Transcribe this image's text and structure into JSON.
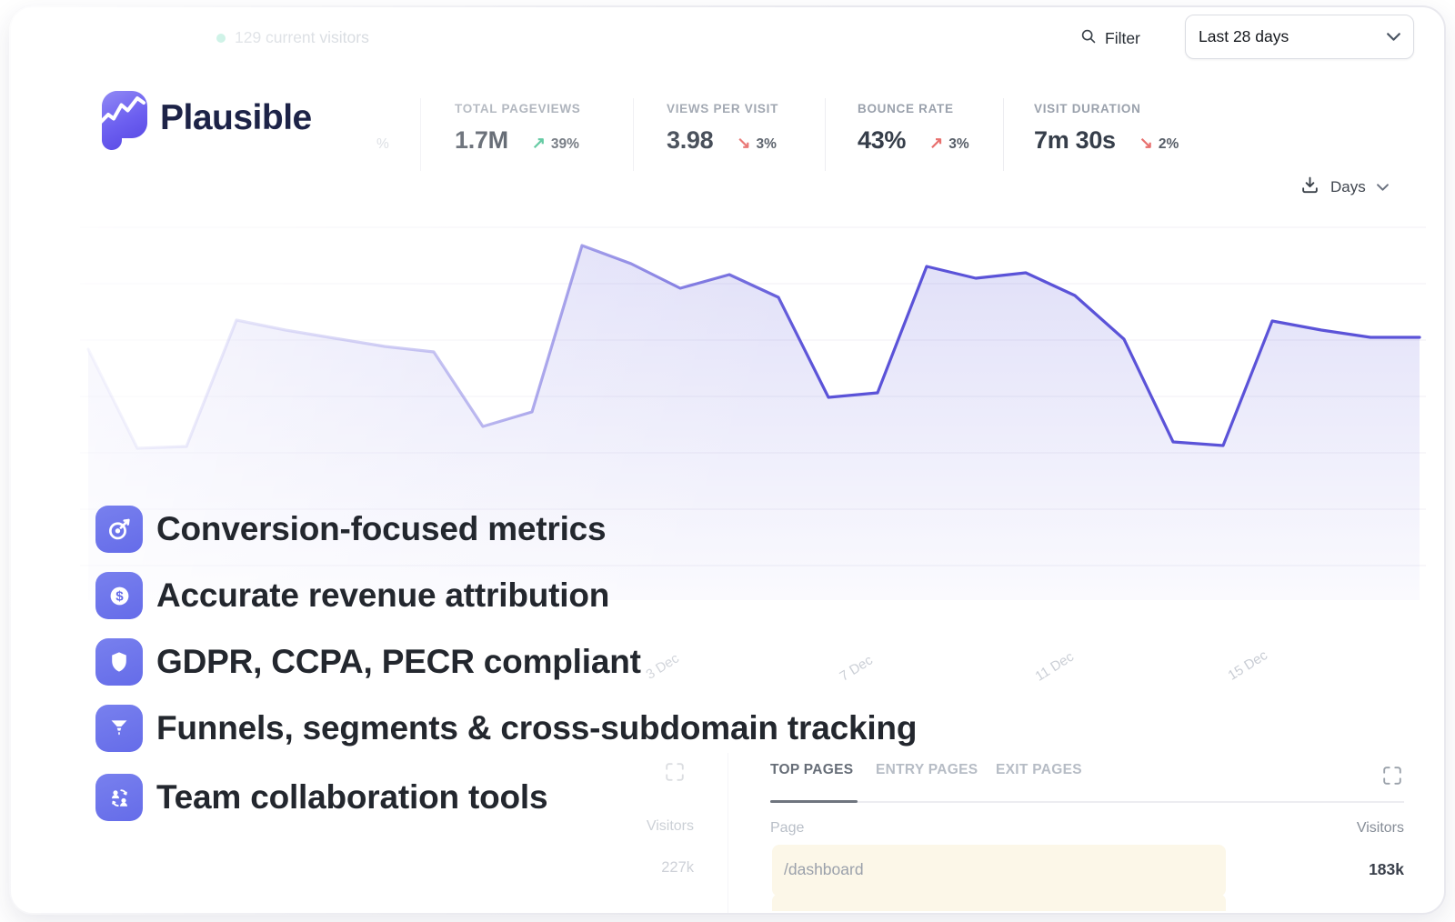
{
  "topbar": {
    "current_visitors_label": "129 current visitors",
    "filter_label": "Filter",
    "date_range_value": "Last 28 days"
  },
  "brand": {
    "name": "Plausible"
  },
  "stats": {
    "faded_fragment": "%",
    "items": [
      {
        "label": "TOTAL PAGEVIEWS",
        "value": "1.7M",
        "arrow": "↗",
        "change": "39%",
        "trend": "up-good"
      },
      {
        "label": "VIEWS PER VISIT",
        "value": "3.98",
        "arrow": "↘",
        "change": "3%",
        "trend": "down-bad"
      },
      {
        "label": "BOUNCE RATE",
        "value": "43%",
        "arrow": "↗",
        "change": "3%",
        "trend": "up-bad"
      },
      {
        "label": "VISIT DURATION",
        "value": "7m 30s",
        "arrow": "↘",
        "change": "2%",
        "trend": "down-bad"
      }
    ]
  },
  "chart_controls": {
    "interval_label": "Days"
  },
  "chart_data": {
    "type": "area",
    "series_name": "Visitors",
    "interval": "Days",
    "date_range": "Last 28 days",
    "x_tick_labels": [
      "3 Dec",
      "7 Dec",
      "11 Dec",
      "15 Dec"
    ],
    "y_axis": "unlabeled",
    "num_points": 28,
    "values_relative_pct": [
      61,
      23,
      24,
      72,
      68,
      65,
      62,
      60,
      31,
      37,
      100,
      93,
      84,
      89,
      80,
      42,
      44,
      92,
      88,
      90,
      81,
      64,
      26,
      24,
      71,
      68,
      65,
      65
    ],
    "points_svg": [
      [
        9,
        144
      ],
      [
        63,
        253
      ],
      [
        117,
        251
      ],
      [
        172,
        112
      ],
      [
        226,
        123
      ],
      [
        280,
        132
      ],
      [
        335,
        141
      ],
      [
        389,
        147
      ],
      [
        443,
        229
      ],
      [
        497,
        213
      ],
      [
        552,
        30
      ],
      [
        606,
        50
      ],
      [
        660,
        77
      ],
      [
        714,
        62
      ],
      [
        768,
        87
      ],
      [
        823,
        197
      ],
      [
        877,
        192
      ],
      [
        931,
        53
      ],
      [
        985,
        66
      ],
      [
        1040,
        60
      ],
      [
        1094,
        85
      ],
      [
        1148,
        133
      ],
      [
        1202,
        246
      ],
      [
        1257,
        250
      ],
      [
        1311,
        113
      ],
      [
        1365,
        123
      ],
      [
        1419,
        131
      ],
      [
        1473,
        131
      ]
    ],
    "svg_viewbox": [
      1480,
      420
    ],
    "line_color": "#5b53d8",
    "fill_color": "rgba(99,94,220,0.18)",
    "grid": "horizontal"
  },
  "features": [
    {
      "icon": "target-dart-icon",
      "label": "Conversion-focused metrics"
    },
    {
      "icon": "dollar-icon",
      "label": "Accurate revenue attribution"
    },
    {
      "icon": "shield-icon",
      "label": "GDPR, CCPA, PECR compliant"
    },
    {
      "icon": "funnel-icon",
      "label": "Funnels, segments & cross-subdomain tracking"
    },
    {
      "icon": "team-icon",
      "label": "Team collaboration tools"
    }
  ],
  "pages_panel": {
    "tabs": [
      "TOP PAGES",
      "ENTRY PAGES",
      "EXIT PAGES"
    ],
    "active_tab": "TOP PAGES",
    "page_column": "Page",
    "visitors_column": "Visitors",
    "rows": [
      {
        "page": "/dashboard",
        "visitors": "183k"
      }
    ]
  },
  "faded_left_panel": {
    "visitors_column": "Visitors",
    "value": "227k"
  },
  "colors": {
    "accent_indigo": "#6c74eb",
    "line_indigo": "#5b53d8",
    "trend_up_green": "#3dbd8b",
    "trend_down_red": "#e8706e",
    "highlight_cream": "#fcf7e8",
    "logo_navy": "#1d2347"
  }
}
